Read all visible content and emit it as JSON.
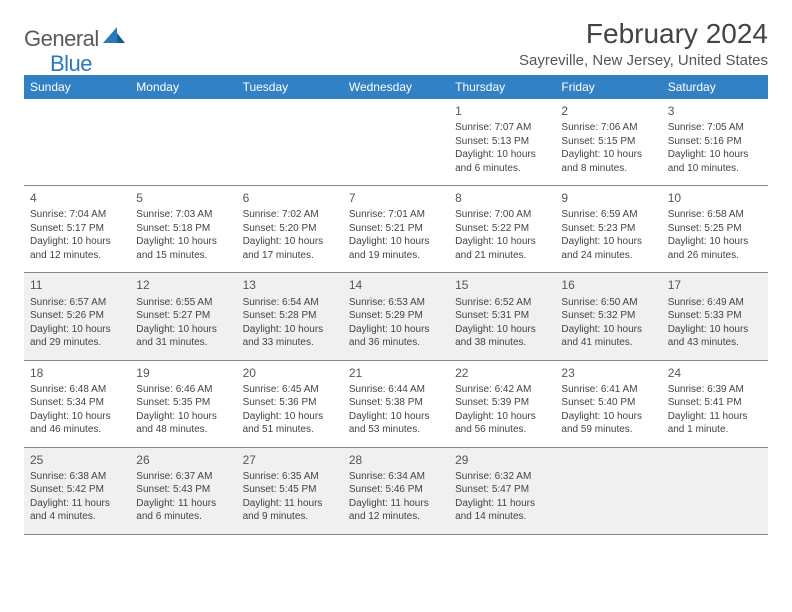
{
  "logo": {
    "text1": "General",
    "text2": "Blue"
  },
  "title": "February 2024",
  "location": "Sayreville, New Jersey, United States",
  "colors": {
    "header_bg": "#3381c5",
    "header_text": "#ffffff",
    "body_text": "#444444",
    "shade_bg": "#f0f0f0",
    "border": "#7a8a9a",
    "logo_gray": "#5a5a5a",
    "logo_blue": "#2a7ab9"
  },
  "weekdays": [
    "Sunday",
    "Monday",
    "Tuesday",
    "Wednesday",
    "Thursday",
    "Friday",
    "Saturday"
  ],
  "weeks": [
    {
      "shaded": false,
      "days": [
        null,
        null,
        null,
        null,
        {
          "n": "1",
          "sunrise": "7:07 AM",
          "sunset": "5:13 PM",
          "daylight": "10 hours and 6 minutes."
        },
        {
          "n": "2",
          "sunrise": "7:06 AM",
          "sunset": "5:15 PM",
          "daylight": "10 hours and 8 minutes."
        },
        {
          "n": "3",
          "sunrise": "7:05 AM",
          "sunset": "5:16 PM",
          "daylight": "10 hours and 10 minutes."
        }
      ]
    },
    {
      "shaded": false,
      "days": [
        {
          "n": "4",
          "sunrise": "7:04 AM",
          "sunset": "5:17 PM",
          "daylight": "10 hours and 12 minutes."
        },
        {
          "n": "5",
          "sunrise": "7:03 AM",
          "sunset": "5:18 PM",
          "daylight": "10 hours and 15 minutes."
        },
        {
          "n": "6",
          "sunrise": "7:02 AM",
          "sunset": "5:20 PM",
          "daylight": "10 hours and 17 minutes."
        },
        {
          "n": "7",
          "sunrise": "7:01 AM",
          "sunset": "5:21 PM",
          "daylight": "10 hours and 19 minutes."
        },
        {
          "n": "8",
          "sunrise": "7:00 AM",
          "sunset": "5:22 PM",
          "daylight": "10 hours and 21 minutes."
        },
        {
          "n": "9",
          "sunrise": "6:59 AM",
          "sunset": "5:23 PM",
          "daylight": "10 hours and 24 minutes."
        },
        {
          "n": "10",
          "sunrise": "6:58 AM",
          "sunset": "5:25 PM",
          "daylight": "10 hours and 26 minutes."
        }
      ]
    },
    {
      "shaded": true,
      "days": [
        {
          "n": "11",
          "sunrise": "6:57 AM",
          "sunset": "5:26 PM",
          "daylight": "10 hours and 29 minutes."
        },
        {
          "n": "12",
          "sunrise": "6:55 AM",
          "sunset": "5:27 PM",
          "daylight": "10 hours and 31 minutes."
        },
        {
          "n": "13",
          "sunrise": "6:54 AM",
          "sunset": "5:28 PM",
          "daylight": "10 hours and 33 minutes."
        },
        {
          "n": "14",
          "sunrise": "6:53 AM",
          "sunset": "5:29 PM",
          "daylight": "10 hours and 36 minutes."
        },
        {
          "n": "15",
          "sunrise": "6:52 AM",
          "sunset": "5:31 PM",
          "daylight": "10 hours and 38 minutes."
        },
        {
          "n": "16",
          "sunrise": "6:50 AM",
          "sunset": "5:32 PM",
          "daylight": "10 hours and 41 minutes."
        },
        {
          "n": "17",
          "sunrise": "6:49 AM",
          "sunset": "5:33 PM",
          "daylight": "10 hours and 43 minutes."
        }
      ]
    },
    {
      "shaded": false,
      "days": [
        {
          "n": "18",
          "sunrise": "6:48 AM",
          "sunset": "5:34 PM",
          "daylight": "10 hours and 46 minutes."
        },
        {
          "n": "19",
          "sunrise": "6:46 AM",
          "sunset": "5:35 PM",
          "daylight": "10 hours and 48 minutes."
        },
        {
          "n": "20",
          "sunrise": "6:45 AM",
          "sunset": "5:36 PM",
          "daylight": "10 hours and 51 minutes."
        },
        {
          "n": "21",
          "sunrise": "6:44 AM",
          "sunset": "5:38 PM",
          "daylight": "10 hours and 53 minutes."
        },
        {
          "n": "22",
          "sunrise": "6:42 AM",
          "sunset": "5:39 PM",
          "daylight": "10 hours and 56 minutes."
        },
        {
          "n": "23",
          "sunrise": "6:41 AM",
          "sunset": "5:40 PM",
          "daylight": "10 hours and 59 minutes."
        },
        {
          "n": "24",
          "sunrise": "6:39 AM",
          "sunset": "5:41 PM",
          "daylight": "11 hours and 1 minute."
        }
      ]
    },
    {
      "shaded": true,
      "days": [
        {
          "n": "25",
          "sunrise": "6:38 AM",
          "sunset": "5:42 PM",
          "daylight": "11 hours and 4 minutes."
        },
        {
          "n": "26",
          "sunrise": "6:37 AM",
          "sunset": "5:43 PM",
          "daylight": "11 hours and 6 minutes."
        },
        {
          "n": "27",
          "sunrise": "6:35 AM",
          "sunset": "5:45 PM",
          "daylight": "11 hours and 9 minutes."
        },
        {
          "n": "28",
          "sunrise": "6:34 AM",
          "sunset": "5:46 PM",
          "daylight": "11 hours and 12 minutes."
        },
        {
          "n": "29",
          "sunrise": "6:32 AM",
          "sunset": "5:47 PM",
          "daylight": "11 hours and 14 minutes."
        },
        null,
        null
      ]
    }
  ]
}
